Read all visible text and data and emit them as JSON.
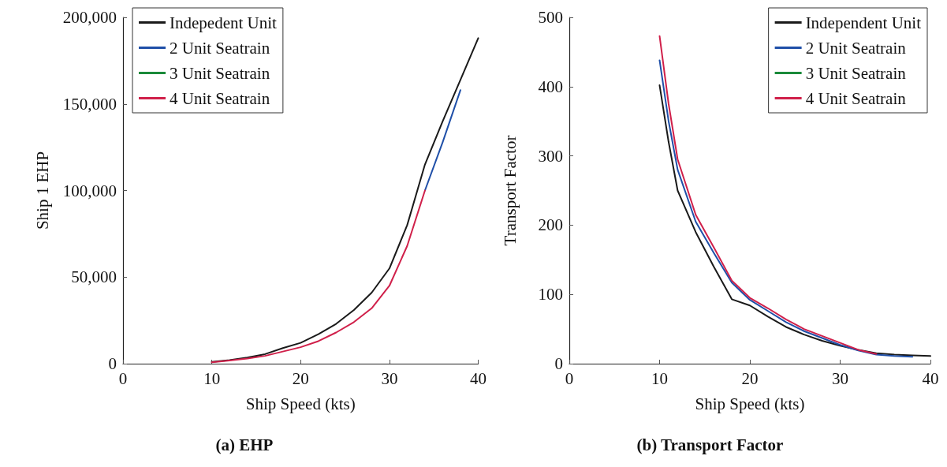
{
  "chart_data": [
    {
      "type": "line",
      "title": "(a) EHP",
      "xlabel": "Ship Speed (kts)",
      "ylabel": "Ship 1 EHP",
      "xlim": [
        0,
        40
      ],
      "xticks": [
        0,
        10,
        20,
        30,
        40
      ],
      "ylim": [
        0,
        200000
      ],
      "yticks": [
        0,
        {
          "value": 50000,
          "label": "50,000"
        },
        {
          "value": 100000,
          "label": "100,000"
        },
        {
          "value": 150000,
          "label": "150,000"
        },
        {
          "value": 200000,
          "label": "200,000"
        }
      ],
      "grid": false,
      "legend": "top left",
      "marker": "none",
      "line_style": "solid",
      "series": [
        {
          "name": "Indepedent Unit",
          "color": "#1a1a1a",
          "x": [
            10,
            12,
            14,
            16,
            18,
            20,
            22,
            24,
            26,
            28,
            30,
            32,
            34,
            36,
            38,
            40
          ],
          "values": [
            1000,
            2000,
            3500,
            5500,
            9000,
            12000,
            17000,
            23000,
            31000,
            41000,
            55000,
            80000,
            115000,
            140000,
            164000,
            188000
          ]
        },
        {
          "name": "2 Unit Seatrain",
          "color": "#1f4fa8",
          "x": [
            34,
            36,
            38
          ],
          "values": [
            100000,
            128000,
            158000
          ]
        },
        {
          "name": "3 Unit Seatrain",
          "color": "#1a8a3a"
        },
        {
          "name": "4 Unit Seatrain",
          "color": "#d0204a",
          "x": [
            10,
            12,
            14,
            16,
            18,
            20,
            22,
            24,
            26,
            28,
            30,
            32,
            34
          ],
          "values": [
            800,
            1800,
            3000,
            4500,
            7000,
            9500,
            13000,
            18000,
            24000,
            32000,
            45000,
            68000,
            100000
          ]
        }
      ]
    },
    {
      "type": "line",
      "title": "(b) Transport Factor",
      "xlabel": "Ship Speed (kts)",
      "ylabel": "Transport Factor",
      "xlim": [
        0,
        40
      ],
      "xticks": [
        0,
        10,
        20,
        30,
        40
      ],
      "ylim": [
        0,
        500
      ],
      "yticks": [
        0,
        100,
        200,
        300,
        400,
        500
      ],
      "grid": false,
      "legend": "top right",
      "marker": "none",
      "line_style": "solid",
      "series": [
        {
          "name": "Independent Unit",
          "color": "#1a1a1a",
          "x": [
            10,
            11,
            12,
            14,
            16,
            18,
            20,
            22,
            24,
            26,
            28,
            30,
            32,
            34,
            36,
            38,
            40
          ],
          "values": [
            402,
            320,
            250,
            190,
            140,
            93,
            84,
            68,
            53,
            42,
            33,
            26,
            20,
            15,
            13,
            12,
            11
          ]
        },
        {
          "name": "2 Unit Seatrain",
          "color": "#1f4fa8",
          "x": [
            10,
            11,
            12,
            14,
            16,
            18,
            20,
            22,
            24,
            26,
            28,
            30,
            32,
            34,
            36,
            38
          ],
          "values": [
            438,
            350,
            280,
            205,
            160,
            117,
            92,
            76,
            60,
            47,
            37,
            27,
            19,
            13,
            11,
            10
          ]
        },
        {
          "name": "3 Unit Seatrain",
          "color": "#1a8a3a"
        },
        {
          "name": "4 Unit Seatrain",
          "color": "#d0204a",
          "x": [
            10,
            11,
            12,
            14,
            16,
            18,
            20,
            22,
            24,
            26,
            28,
            30,
            32,
            34
          ],
          "values": [
            473,
            375,
            295,
            215,
            168,
            120,
            95,
            80,
            64,
            50,
            40,
            30,
            20,
            14
          ]
        }
      ]
    }
  ]
}
